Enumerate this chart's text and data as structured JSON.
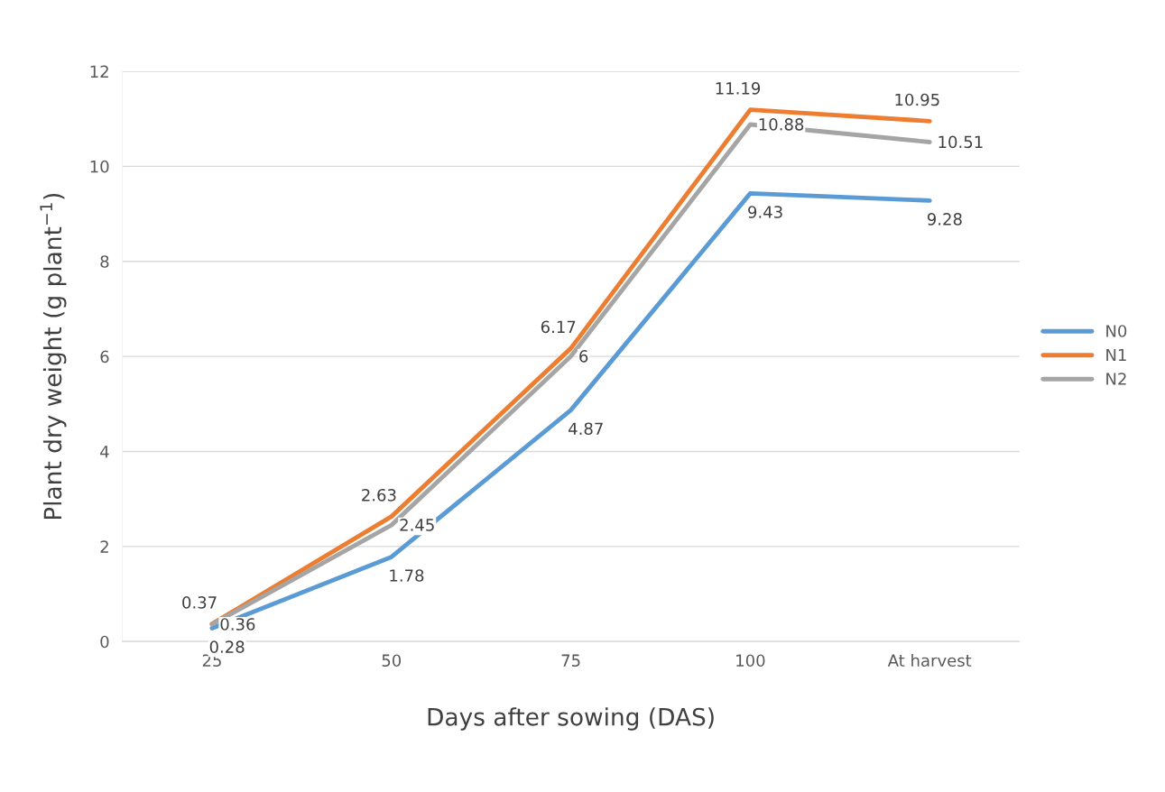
{
  "chart_data": {
    "type": "line",
    "xlabel": "Days after sowing (DAS)",
    "ylabel": "Plant dry weight (g plant$^{−1}$)",
    "categories": [
      "25",
      "50",
      "75",
      "100",
      "At harvest"
    ],
    "series": [
      {
        "name": "N0",
        "color": "#5b9bd5",
        "values": [
          0.28,
          1.78,
          4.87,
          9.43,
          9.28
        ]
      },
      {
        "name": "N1",
        "color": "#ed7d31",
        "values": [
          0.37,
          2.63,
          6.17,
          11.19,
          10.95
        ]
      },
      {
        "name": "N2",
        "color": "#a5a5a5",
        "values": [
          0.36,
          2.45,
          6,
          10.88,
          10.51
        ]
      }
    ],
    "ylim": [
      0,
      12
    ],
    "yticks": [
      0,
      2,
      4,
      6,
      8,
      10,
      12
    ],
    "grid": "y",
    "legend": "right",
    "marker": "none",
    "line_style": "solid",
    "data_labels": true
  }
}
